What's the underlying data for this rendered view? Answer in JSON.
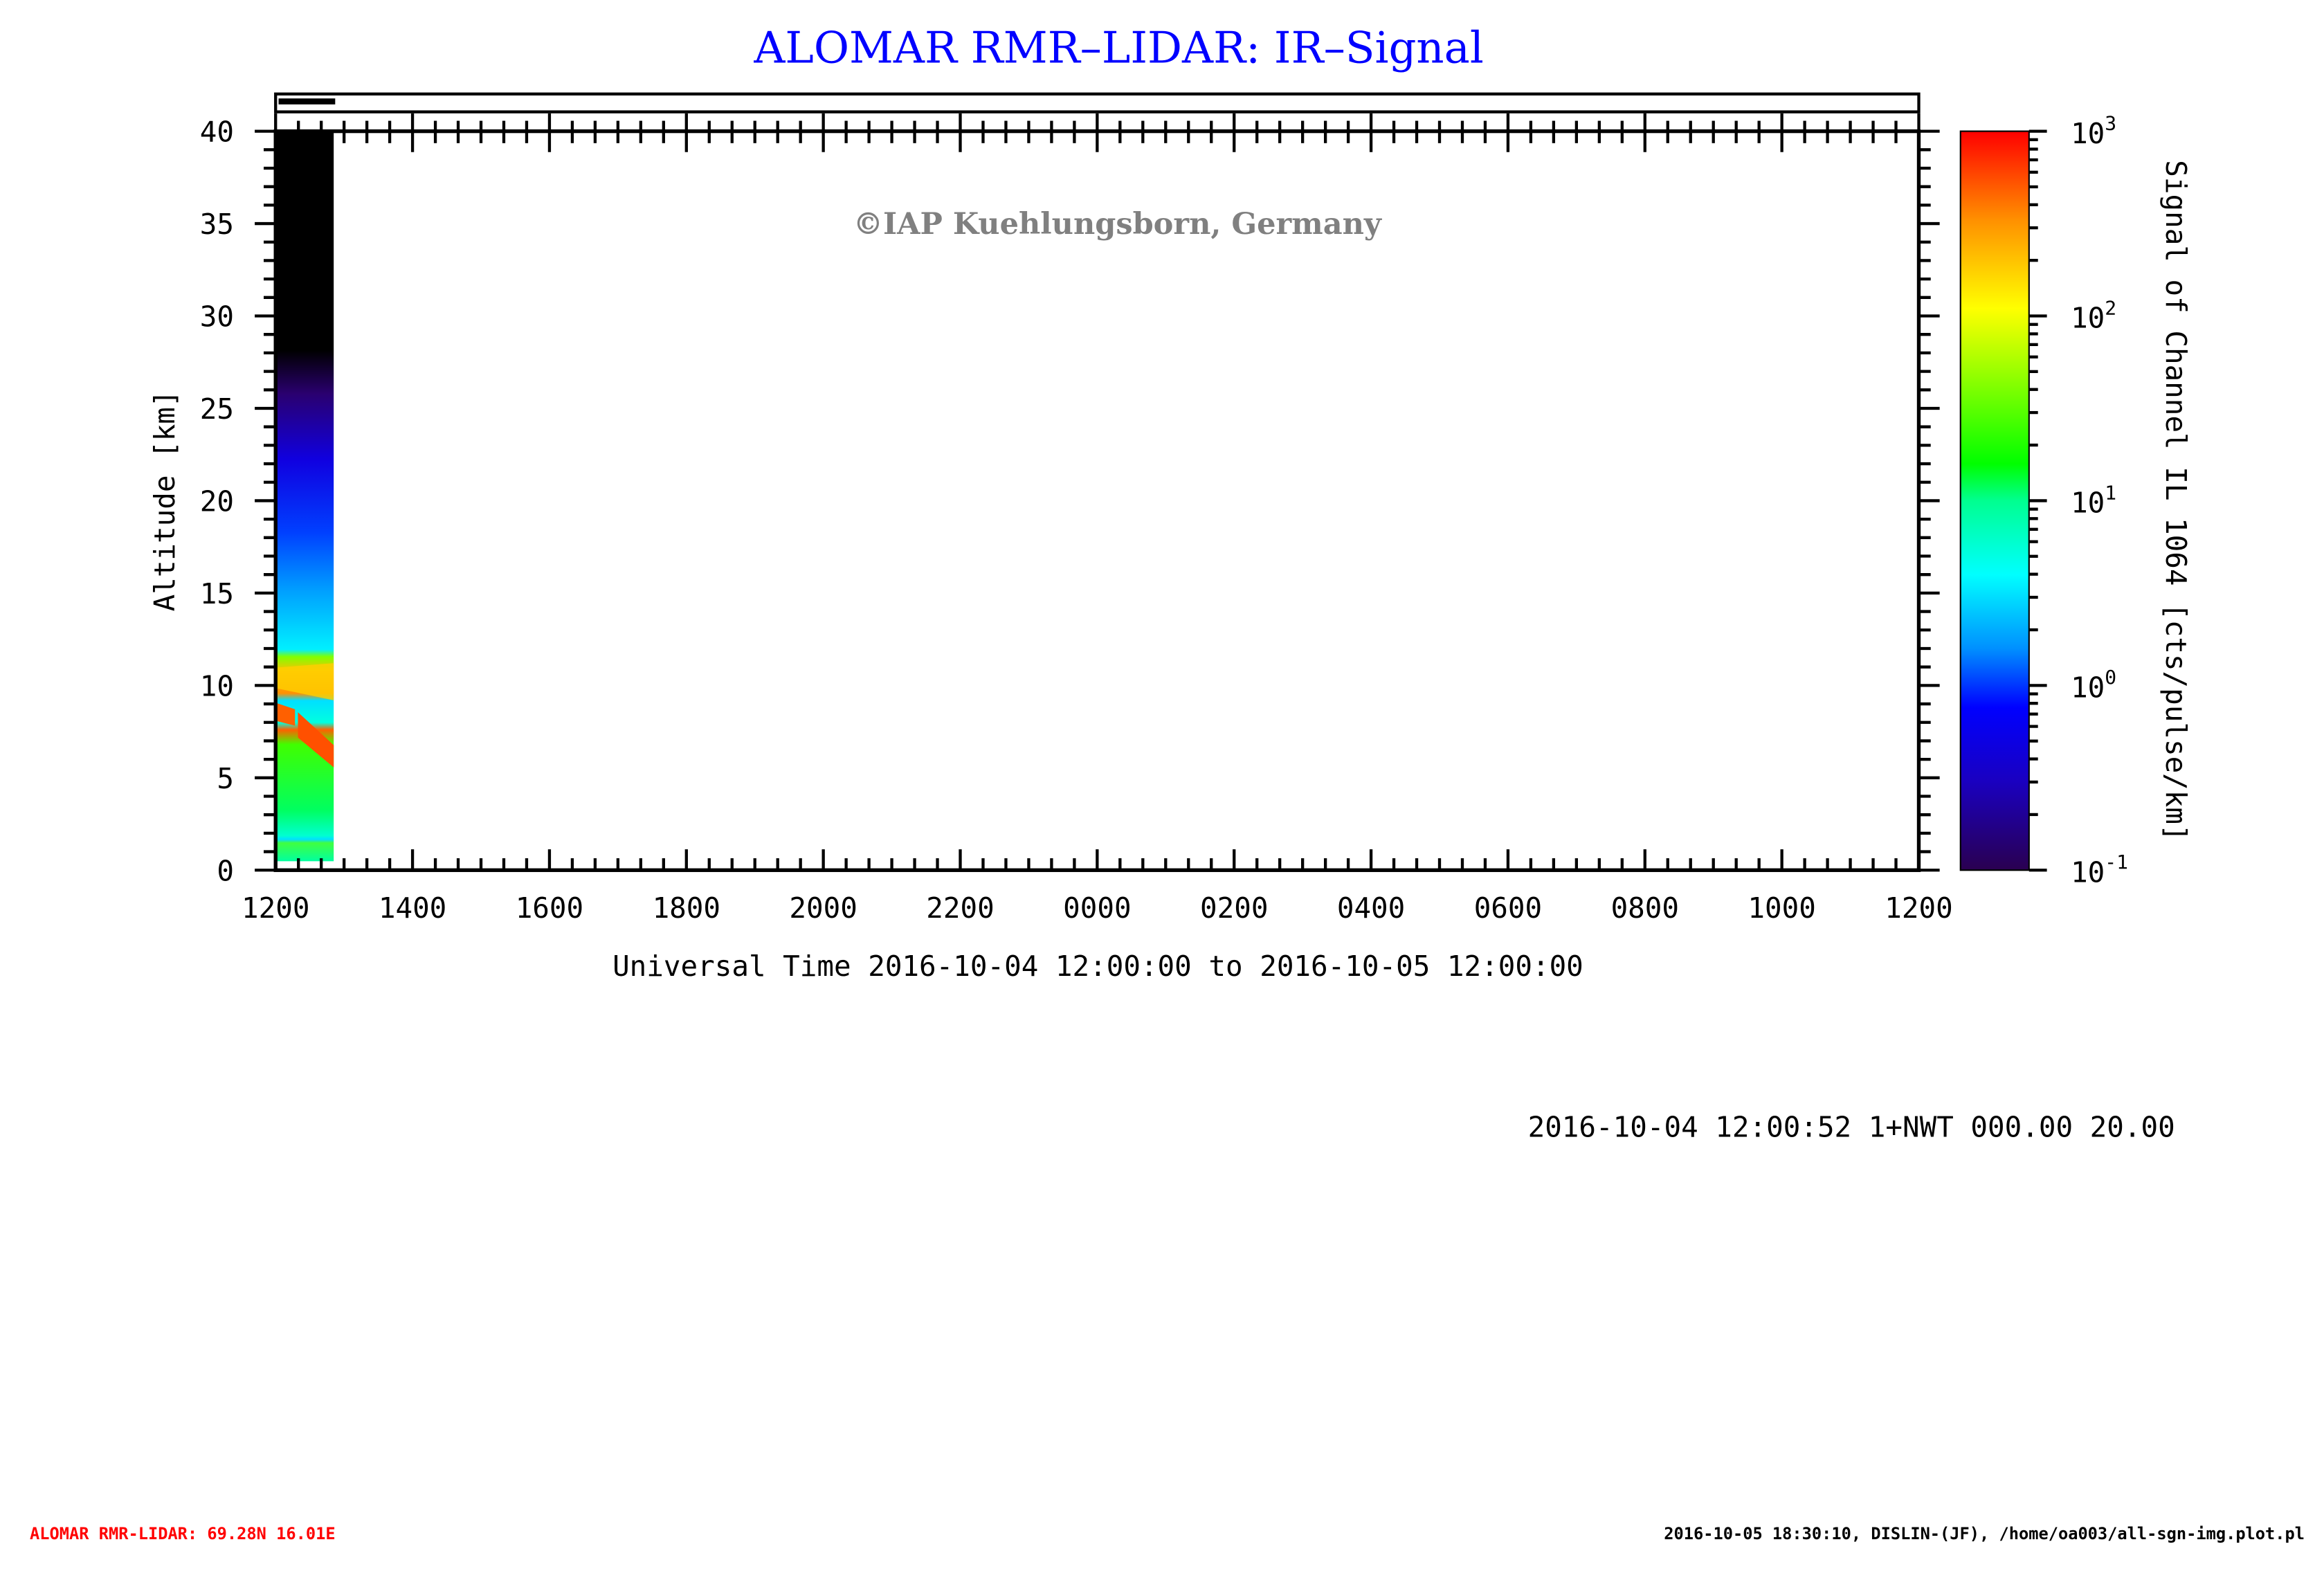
{
  "chart_data": {
    "type": "heatmap",
    "title": "ALOMAR RMR–LIDAR: IR–Signal",
    "xlabel": "Universal Time 2016-10-04 12:00:00 to 2016-10-05 12:00:00",
    "ylabel": "Altitude [km]",
    "colorbar_label": "Signal of Channel IL 1064 [cts/pulse/km]",
    "x_tick_labels": [
      "1200",
      "1400",
      "1600",
      "1800",
      "2000",
      "2200",
      "0000",
      "0200",
      "0400",
      "0600",
      "0800",
      "1000",
      "1200"
    ],
    "xlim_hours_ut": [
      12,
      36
    ],
    "ylim": [
      0,
      40
    ],
    "y_ticks": [
      0,
      5,
      10,
      15,
      20,
      25,
      30,
      35,
      40
    ],
    "colorbar": {
      "scale": "log",
      "range": [
        0.1,
        1000
      ],
      "tick_labels": [
        {
          "base": "10",
          "exp": "-1"
        },
        {
          "base": "10",
          "exp": "0"
        },
        {
          "base": "10",
          "exp": "1"
        },
        {
          "base": "10",
          "exp": "2"
        },
        {
          "base": "10",
          "exp": "3"
        }
      ],
      "colors": [
        "#2a0050",
        "#0000ff",
        "#00ffff",
        "#00ff00",
        "#ffff00",
        "#ff0000"
      ]
    },
    "data_extent": {
      "time_start": "12:00",
      "time_end": "12:51",
      "alt_min_km": 0.5,
      "alt_max_km": 40
    },
    "grid": false
  },
  "watermark": "©IAP Kuehlungsborn, Germany",
  "info_line": "2016-10-04 12:00:52 1+NWT 000.00 20.00",
  "footer_left": "ALOMAR RMR-LIDAR: 69.28N 16.01E",
  "footer_right": "2016-10-05 18:30:10, DISLIN-(JF), /home/oa003/all-sgn-img.plot.pl",
  "colors": {
    "title": "#0000ff",
    "watermark": "#808080",
    "footer_left": "#ff0000"
  }
}
